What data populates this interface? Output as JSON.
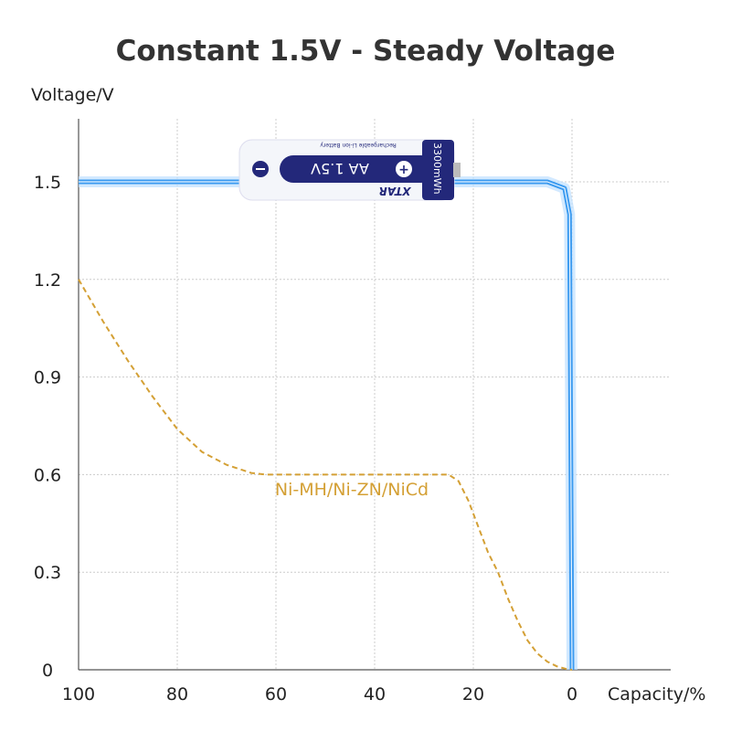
{
  "chart_data": {
    "type": "line",
    "title": "Constant 1.5V - Steady Voltage",
    "ylabel": "Voltage/V",
    "xlabel": "Capacity/%",
    "xlim": [
      100,
      0
    ],
    "ylim": [
      0,
      1.65
    ],
    "x_ticks": [
      "100",
      "80",
      "60",
      "40",
      "20",
      "0"
    ],
    "y_ticks": [
      "1.5",
      "1.2",
      "0.9",
      "0.6",
      "0.3",
      "0"
    ],
    "grid": true,
    "series": [
      {
        "name": "",
        "color": "#3a9af0",
        "style": "solid-glow",
        "x": [
          100,
          80,
          60,
          40,
          20,
          5,
          1.5,
          0.5,
          0
        ],
        "y": [
          1.5,
          1.5,
          1.5,
          1.5,
          1.5,
          1.5,
          1.48,
          1.4,
          0
        ]
      },
      {
        "name": "Ni-MH/Ni-ZN/NiCd",
        "color": "#d4a035",
        "style": "dashed",
        "x": [
          100,
          95,
          90,
          85,
          80,
          75,
          70,
          65,
          62,
          50,
          40,
          30,
          25,
          23,
          21,
          19,
          17,
          15,
          13,
          11,
          9,
          7,
          5,
          3,
          1,
          0
        ],
        "y": [
          1.2,
          1.07,
          0.95,
          0.84,
          0.74,
          0.67,
          0.63,
          0.605,
          0.6,
          0.6,
          0.6,
          0.6,
          0.6,
          0.58,
          0.52,
          0.44,
          0.36,
          0.3,
          0.22,
          0.15,
          0.09,
          0.05,
          0.025,
          0.01,
          0.002,
          0
        ]
      }
    ],
    "battery": {
      "brand": "XTAR",
      "model": "AA 1.5V",
      "capacity": "3300mWh",
      "subtitle": "Rechargeable Li-ion Battery",
      "brand_color": "#23287a"
    }
  }
}
